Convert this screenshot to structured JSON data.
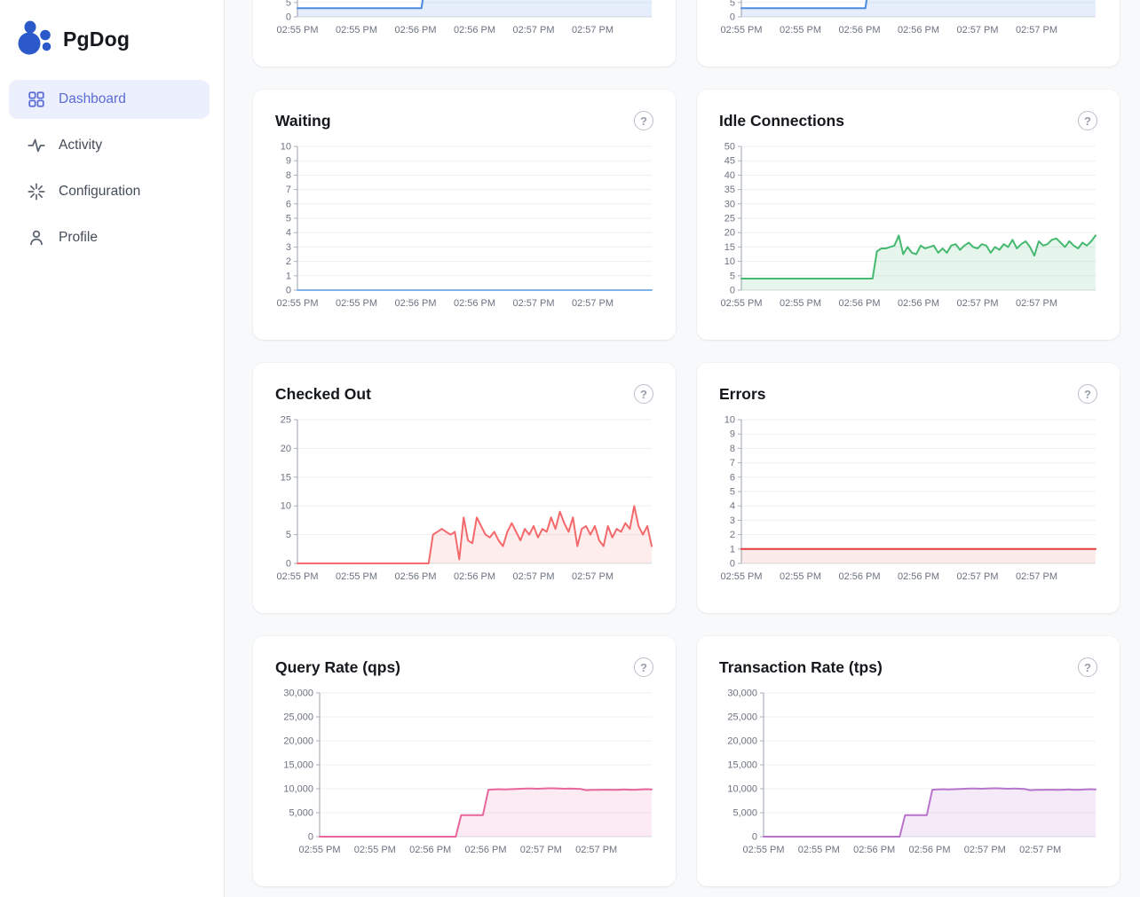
{
  "app": {
    "name": "PgDog"
  },
  "ui": {
    "help_glyph": "?"
  },
  "colors": {
    "brand_blue": "#2b59c9",
    "active_nav_bg": "#eceffc",
    "active_nav_text": "#5b6bd5",
    "content_bg": "#f8f9fa"
  },
  "sidebar": {
    "items": [
      {
        "label": "Dashboard",
        "icon": "dashboard-grid-icon",
        "active": true
      },
      {
        "label": "Activity",
        "icon": "activity-pulse-icon",
        "active": false
      },
      {
        "label": "Configuration",
        "icon": "configuration-spark-icon",
        "active": false
      },
      {
        "label": "Profile",
        "icon": "profile-person-icon",
        "active": false
      }
    ]
  },
  "chart_data": [
    {
      "type": "area",
      "title": "",
      "note": "top-left chart cut off by viewport, only bottom visible",
      "color": "#4c8be0",
      "fill_color": "rgba(91,150,227,0.16)",
      "ylim": [
        0,
        50
      ],
      "ytick_step": 5,
      "x_labels": [
        "02:55 PM",
        "02:55 PM",
        "02:56 PM",
        "02:56 PM",
        "02:57 PM",
        "02:57 PM"
      ],
      "values": [
        3,
        3,
        3,
        3,
        3,
        3,
        3,
        3,
        45,
        45,
        45,
        45,
        45,
        45,
        45,
        45,
        45,
        45,
        45,
        45,
        45
      ]
    },
    {
      "type": "area",
      "title": "",
      "note": "top-right chart cut off by viewport, only bottom visible",
      "color": "#4c8be0",
      "fill_color": "rgba(91,150,227,0.16)",
      "ylim": [
        0,
        50
      ],
      "ytick_step": 5,
      "x_labels": [
        "02:55 PM",
        "02:55 PM",
        "02:56 PM",
        "02:56 PM",
        "02:57 PM",
        "02:57 PM"
      ],
      "values": [
        3,
        3,
        3,
        3,
        3,
        3,
        3,
        3,
        45,
        45,
        45,
        45,
        45,
        45,
        45,
        45,
        45,
        45,
        45,
        45,
        45
      ]
    },
    {
      "type": "area",
      "title": "Waiting",
      "color": "#7db4ea",
      "fill_color": "rgba(125,180,234,0.15)",
      "ylim": [
        0,
        10
      ],
      "ytick_step": 1,
      "x_labels": [
        "02:55 PM",
        "02:55 PM",
        "02:56 PM",
        "02:56 PM",
        "02:57 PM",
        "02:57 PM"
      ],
      "values": [
        0,
        0
      ]
    },
    {
      "type": "area",
      "title": "Idle Connections",
      "color": "#45b96f",
      "fill_color": "rgba(69,185,111,0.13)",
      "ylim": [
        0,
        50
      ],
      "ytick_step": 5,
      "x_labels": [
        "02:55 PM",
        "02:55 PM",
        "02:56 PM",
        "02:56 PM",
        "02:57 PM",
        "02:57 PM"
      ],
      "values": [
        4,
        4,
        4,
        4,
        4,
        4,
        4,
        4,
        4,
        4,
        4,
        4,
        4,
        4,
        4,
        4,
        4,
        4,
        4,
        4,
        4,
        4,
        4,
        4,
        4,
        4,
        4,
        4,
        4,
        4,
        4,
        13.5,
        14.5,
        14.5,
        15,
        15.5,
        19,
        12.5,
        15,
        13,
        12.5,
        15.5,
        14.5,
        15,
        15.5,
        13,
        14.5,
        13,
        15.5,
        16,
        14,
        15.5,
        16.5,
        15,
        14.5,
        16,
        15.5,
        13,
        15,
        14,
        16,
        15,
        17.5,
        14.5,
        16,
        17,
        15,
        12,
        17,
        15.5,
        16,
        17.5,
        18,
        16.5,
        15,
        17,
        15.5,
        14.5,
        16.5,
        15.5,
        17,
        19
      ]
    },
    {
      "type": "area",
      "title": "Checked Out",
      "color": "#f4696b",
      "fill_color": "rgba(244,105,107,0.12)",
      "ylim": [
        0,
        25
      ],
      "ytick_step": 5,
      "x_labels": [
        "02:55 PM",
        "02:55 PM",
        "02:56 PM",
        "02:56 PM",
        "02:57 PM",
        "02:57 PM"
      ],
      "values": [
        0,
        0,
        0,
        0,
        0,
        0,
        0,
        0,
        0,
        0,
        0,
        0,
        0,
        0,
        0,
        0,
        0,
        0,
        0,
        0,
        0,
        0,
        0,
        0,
        0,
        0,
        0,
        0,
        0,
        0,
        0,
        5,
        5.5,
        6,
        5.5,
        5,
        5.5,
        0.7,
        8,
        4,
        3.5,
        8,
        6.5,
        5,
        4.5,
        5.5,
        4,
        3,
        5.5,
        7,
        5.5,
        4,
        6,
        5,
        6.5,
        4.5,
        6,
        5.5,
        8,
        6,
        9,
        7,
        5.5,
        8,
        3,
        6,
        6.5,
        5,
        6.5,
        4,
        3,
        6.5,
        4.5,
        6,
        5.5,
        7,
        6,
        10,
        6.5,
        5,
        6.5,
        3
      ]
    },
    {
      "type": "area",
      "title": "Errors",
      "color": "#e5393d",
      "fill_color": "rgba(229,57,61,0.10)",
      "ylim": [
        0,
        10
      ],
      "ytick_step": 1,
      "x_labels": [
        "02:55 PM",
        "02:55 PM",
        "02:56 PM",
        "02:56 PM",
        "02:57 PM",
        "02:57 PM"
      ],
      "values": [
        1,
        1
      ]
    },
    {
      "type": "area",
      "title": "Query Rate (qps)",
      "color": "#e8669c",
      "fill_color": "rgba(232,102,156,0.13)",
      "ylim": [
        0,
        30000
      ],
      "ytick_step": 5000,
      "x_labels": [
        "02:55 PM",
        "02:55 PM",
        "02:56 PM",
        "02:56 PM",
        "02:57 PM",
        "02:57 PM"
      ],
      "values": [
        0,
        0,
        0,
        0,
        0,
        0,
        0,
        0,
        0,
        0,
        0,
        0,
        0,
        0,
        0,
        0,
        0,
        0,
        0,
        0,
        0,
        0,
        0,
        0,
        0,
        0,
        4500,
        4500,
        4500,
        4500,
        4500,
        9800,
        9850,
        9900,
        9850,
        9900,
        9950,
        10000,
        10050,
        10050,
        10000,
        10050,
        10100,
        10100,
        10050,
        10000,
        10050,
        10000,
        9950,
        9700,
        9750,
        9750,
        9800,
        9800,
        9750,
        9800,
        9850,
        9800,
        9800,
        9850,
        9900,
        9850
      ]
    },
    {
      "type": "area",
      "title": "Transaction Rate (tps)",
      "color": "#b873cb",
      "fill_color": "rgba(184,115,203,0.14)",
      "ylim": [
        0,
        30000
      ],
      "ytick_step": 5000,
      "x_labels": [
        "02:55 PM",
        "02:55 PM",
        "02:56 PM",
        "02:56 PM",
        "02:57 PM",
        "02:57 PM"
      ],
      "values": [
        0,
        0,
        0,
        0,
        0,
        0,
        0,
        0,
        0,
        0,
        0,
        0,
        0,
        0,
        0,
        0,
        0,
        0,
        0,
        0,
        0,
        0,
        0,
        0,
        0,
        0,
        4500,
        4500,
        4500,
        4500,
        4500,
        9800,
        9850,
        9900,
        9850,
        9900,
        9950,
        10000,
        10050,
        10050,
        10000,
        10050,
        10100,
        10100,
        10050,
        10000,
        10050,
        10000,
        9950,
        9700,
        9750,
        9750,
        9800,
        9800,
        9750,
        9800,
        9850,
        9800,
        9800,
        9850,
        9900,
        9850
      ]
    }
  ]
}
